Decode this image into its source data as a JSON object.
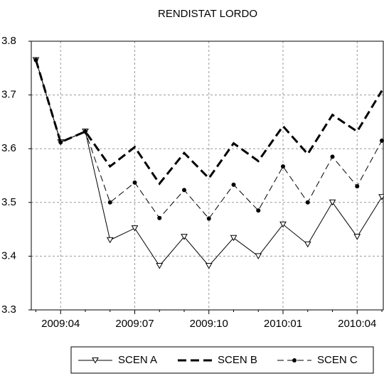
{
  "chart_data": {
    "type": "line",
    "title": "RENDISTAT LORDO",
    "categories": [
      null,
      "2009:04",
      null,
      null,
      "2009:07",
      null,
      null,
      "2009:10",
      null,
      null,
      "2010:01",
      null,
      null,
      "2010:04",
      null
    ],
    "series": [
      {
        "name": "SCEN A",
        "color": "#000000",
        "dash": "solid",
        "width": 1,
        "marker": "triangle-down",
        "values": [
          3.765,
          3.612,
          3.632,
          3.43,
          3.452,
          3.382,
          3.436,
          3.382,
          3.434,
          3.4,
          3.459,
          3.422,
          3.5,
          3.436,
          3.51
        ]
      },
      {
        "name": "SCEN B",
        "color": "#000000",
        "dash": "heavy-dash",
        "width": 3,
        "marker": "none",
        "values": [
          3.765,
          3.612,
          3.632,
          3.567,
          3.603,
          3.535,
          3.592,
          3.545,
          3.61,
          3.577,
          3.642,
          3.59,
          3.663,
          3.632,
          3.708
        ]
      },
      {
        "name": "SCEN C",
        "color": "#000000",
        "dash": "dash",
        "width": 1,
        "marker": "dot",
        "values": [
          3.765,
          3.612,
          3.632,
          3.5,
          3.537,
          3.471,
          3.523,
          3.47,
          3.533,
          3.485,
          3.567,
          3.5,
          3.585,
          3.53,
          3.615
        ]
      }
    ],
    "ylim": [
      3.3,
      3.8
    ],
    "yticks": [
      3.3,
      3.4,
      3.5,
      3.6,
      3.7,
      3.8
    ],
    "grid": true,
    "legend": "bottom"
  }
}
